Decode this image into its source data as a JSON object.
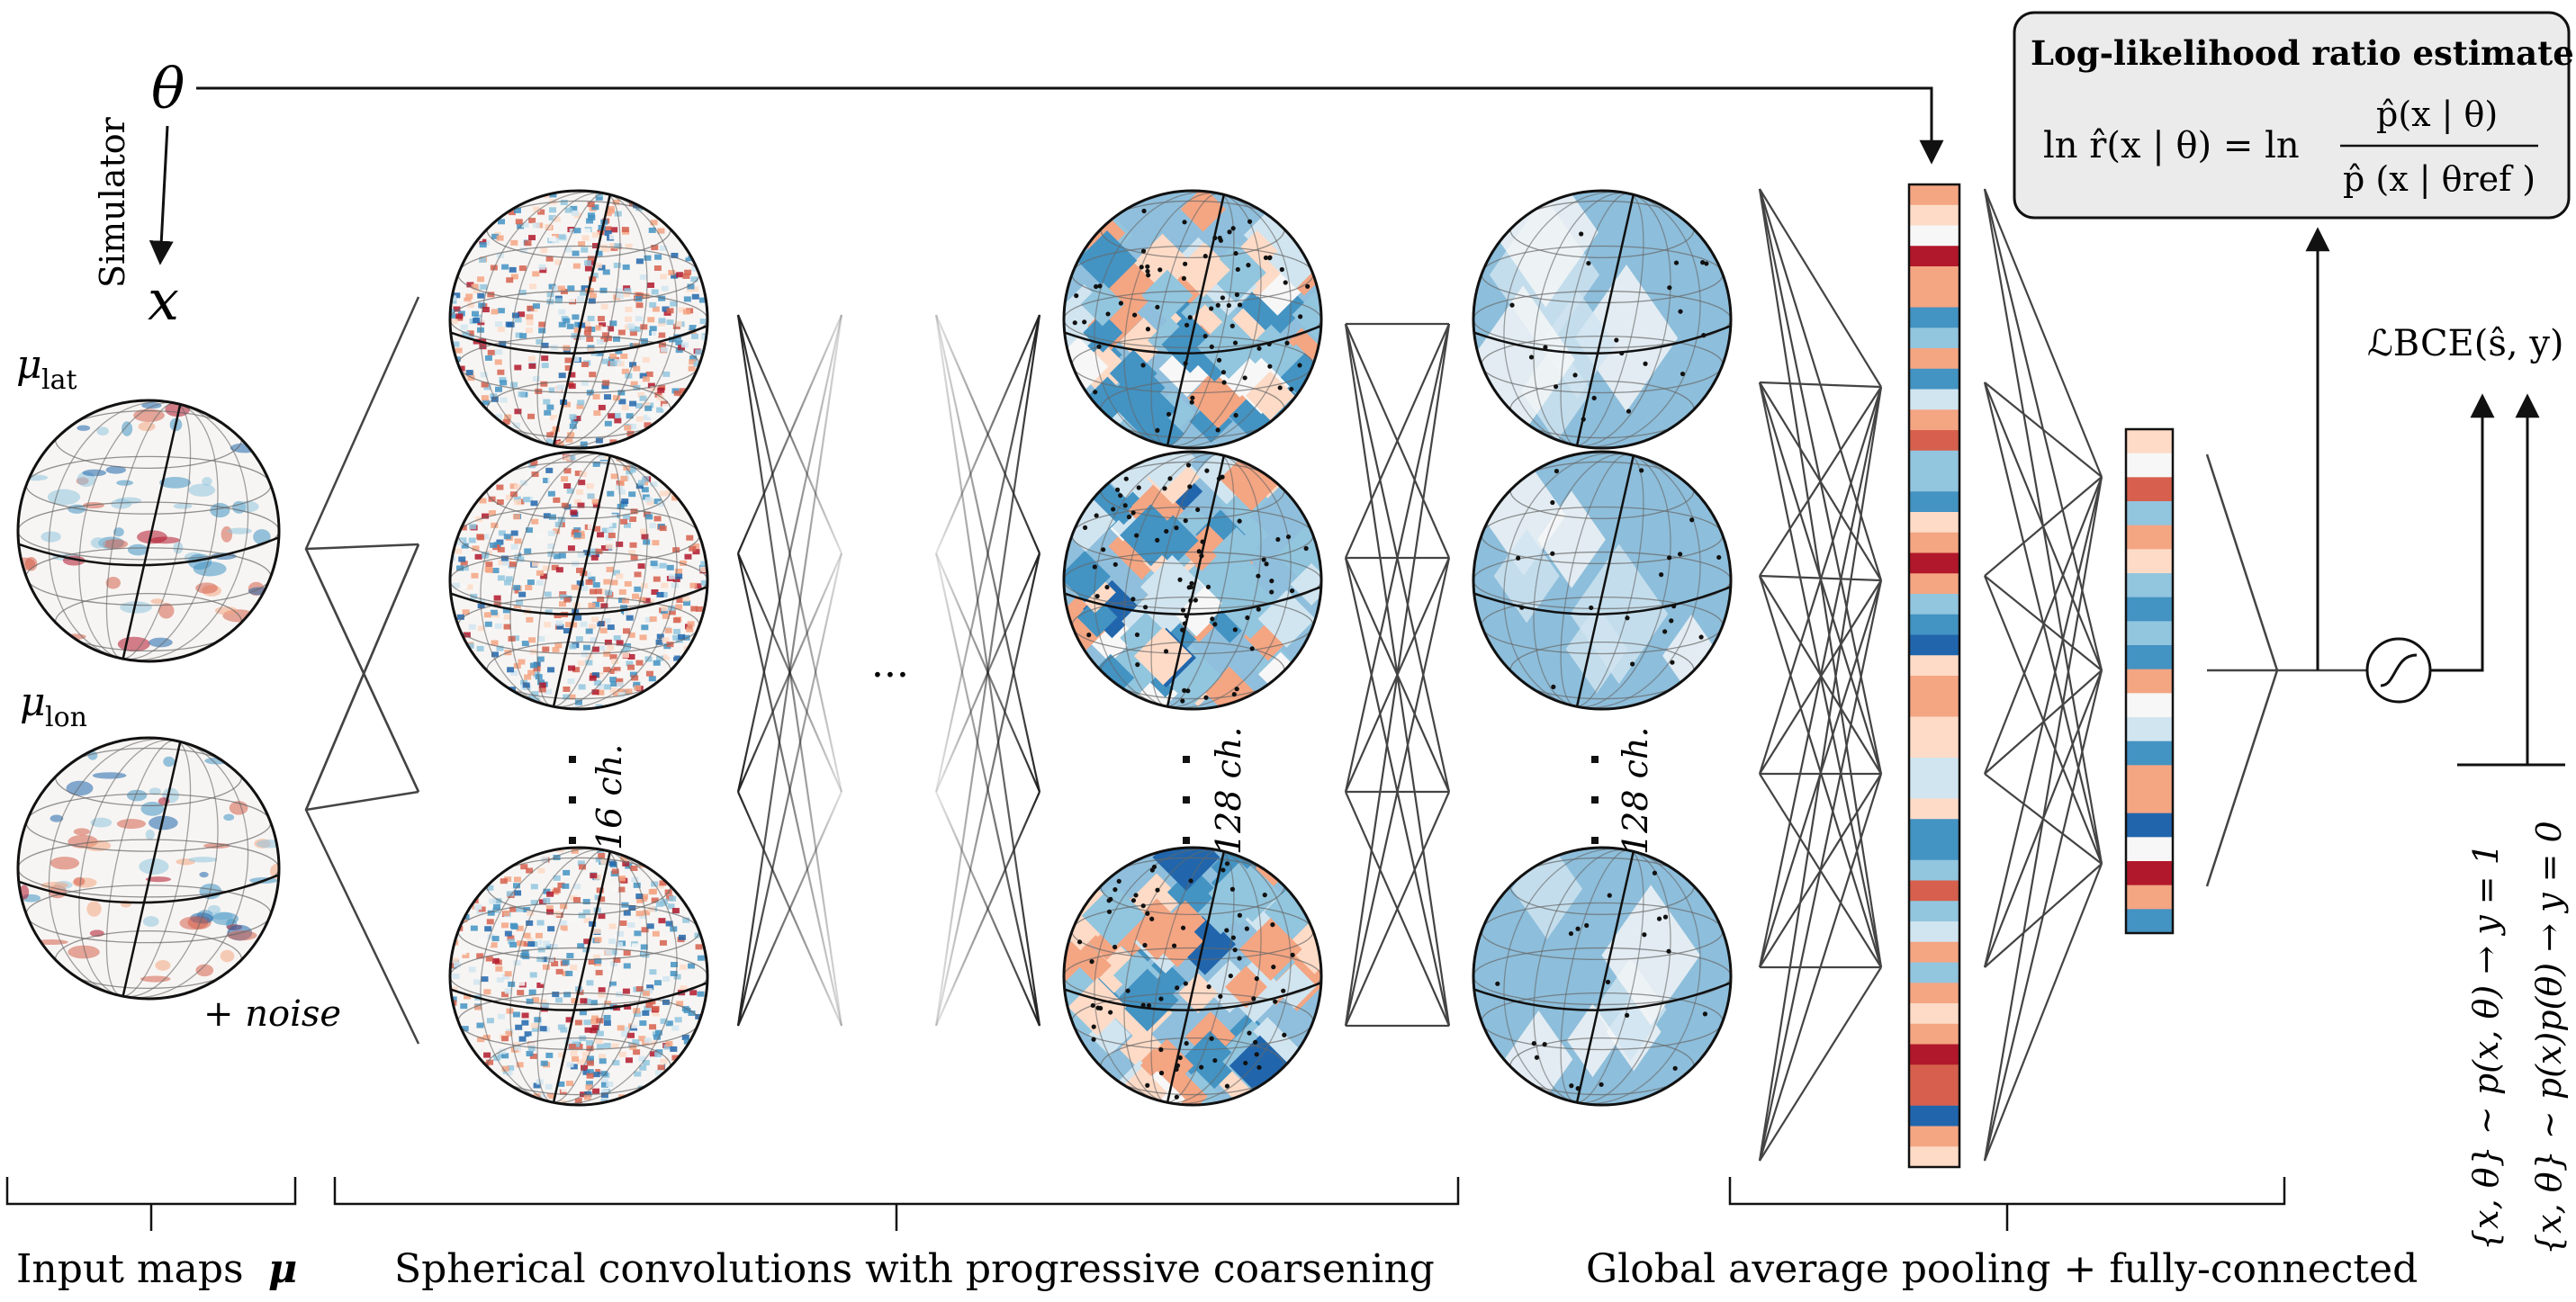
{
  "colors": {
    "red_dark": "#b2182b",
    "red": "#d6604d",
    "red_light": "#f4a582",
    "pink_light": "#fddbc7",
    "white": "#f7f7f7",
    "blue_pale": "#d1e5f0",
    "blue_light": "#92c5de",
    "blue": "#4393c3",
    "blue_dark": "#2166ac",
    "box_fill": "#ebebeb",
    "line": "#333333"
  },
  "input": {
    "theta": "θ",
    "simulator": "Simulator",
    "x": "x",
    "mu_lat": "μ",
    "mu_lat_sub": "lat",
    "mu_lon": "μ",
    "mu_lon_sub": "lon",
    "noise": "+ noise"
  },
  "conv": {
    "channels_16": "16 ch.",
    "channels_128a": "128 ch.",
    "channels_128b": "128 ch.",
    "ellipsis": "···"
  },
  "output": {
    "box_title": "Log-likelihood ratio estimate",
    "formula_lhs": "ln r̂(x | θ) = ln",
    "formula_num": "p̂(x | θ)",
    "formula_den": "p̂ (x | θref )",
    "loss": "ℒBCE(ŝ, y)",
    "label_joint": "{x, θ} ~ p(x, θ) → y = 1",
    "label_marginal": "{x, θ} ~ p(x)p(θ) → y = 0"
  },
  "bottom_labels": {
    "input_maps": "Input maps",
    "input_maps_symbol": "μ",
    "spherical_conv": "Spherical convolutions with progressive coarsening",
    "pooling": "Global average pooling + fully-connected"
  },
  "vectors": {
    "pooled_vector_values": [
      0.3,
      0.1,
      0.05,
      0.95,
      0.5,
      0.3,
      -0.7,
      -0.3,
      0.45,
      -0.7,
      -0.2,
      0.3,
      0.6,
      -0.5,
      -0.4,
      -0.75,
      0.1,
      0.4,
      0.9,
      0.3,
      -0.3,
      -0.6,
      -0.85,
      0.1,
      0.4,
      0.5,
      0.1,
      0.2,
      -0.25,
      -0.2,
      0.15,
      -0.55,
      -0.75,
      -0.3,
      0.7,
      -0.5,
      -0.1,
      0.3,
      -0.4,
      0.45,
      0.1,
      0.5,
      0.95,
      0.8,
      0.6,
      -0.9,
      0.5,
      0.1
    ],
    "fc_vector_values": [
      0.2,
      0.05,
      0.8,
      -0.5,
      0.5,
      0.2,
      -0.3,
      -0.55,
      -0.3,
      -0.8,
      0.35,
      0.0,
      -0.2,
      -0.55,
      0.3,
      0.5,
      -0.9,
      -0.05,
      0.95,
      0.45,
      -0.75
    ]
  },
  "spheres": {
    "input_lat": "input-lat",
    "input_lon": "input-lon",
    "c1": [
      "conv1-top",
      "conv1-mid",
      "conv1-bot"
    ],
    "c2": [
      "conv2-top",
      "conv2-mid",
      "conv2-bot"
    ],
    "c3": [
      "conv3-top",
      "conv3-mid",
      "conv3-bot"
    ]
  }
}
